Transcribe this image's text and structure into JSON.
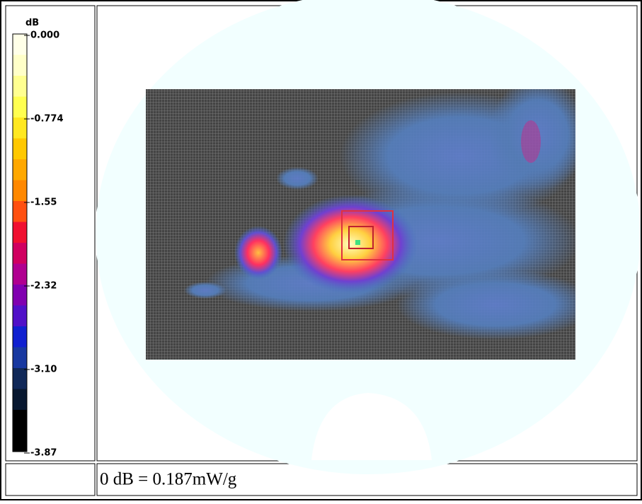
{
  "colorbar": {
    "unit": "dB",
    "ticks": [
      "0.000",
      "-0.774",
      "-1.55",
      "-2.32",
      "-3.10",
      "-3.87"
    ]
  },
  "footer": {
    "text": "0 dB = 0.187mW/g"
  }
}
